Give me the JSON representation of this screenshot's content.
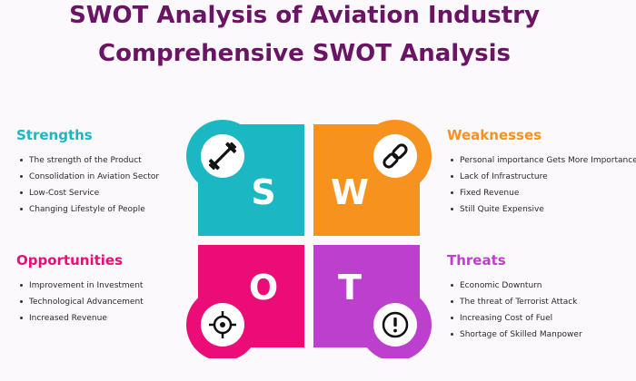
{
  "title_line1": "SWOT Analysis of Aviation Industry",
  "title_line2": "Comprehensive SWOT Analysis",
  "colors": {
    "title": "#6b1466",
    "strengths": "#1bb8c4",
    "weaknesses": "#f7921e",
    "opportunities": "#ec0c78",
    "threats": "#bd3fce"
  },
  "letters": {
    "s": "S",
    "w": "W",
    "o": "O",
    "t": "T"
  },
  "icons": {
    "strengths": "dumbbell-icon",
    "weaknesses": "chain-link-icon",
    "opportunities": "target-icon",
    "threats": "exclamation-icon"
  },
  "strengths": {
    "heading": "Strengths",
    "items": [
      "The strength of the Product",
      "Consolidation in Aviation Sector",
      "Low-Cost Service",
      "Changing Lifestyle of People"
    ]
  },
  "weaknesses": {
    "heading": "Weaknesses",
    "items": [
      "Personal importance Gets More Importance",
      "Lack of Infrastructure",
      "Fixed Revenue",
      "Still Quite Expensive"
    ]
  },
  "opportunities": {
    "heading": "Opportunities",
    "items": [
      "Improvement in Investment",
      "Technological Advancement",
      "Increased Revenue"
    ]
  },
  "threats": {
    "heading": "Threats",
    "items": [
      "Economic Downturn",
      "The threat of Terrorist Attack",
      "Increasing Cost of Fuel",
      "Shortage of Skilled Manpower"
    ]
  }
}
